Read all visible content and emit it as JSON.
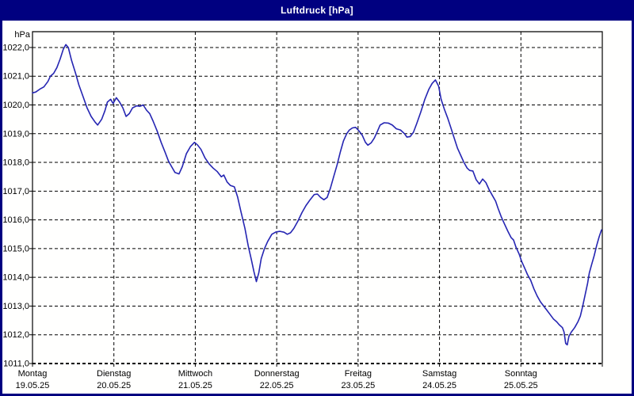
{
  "window": {
    "title": "Luftdruck [hPa]",
    "border_color": "#000080",
    "title_text_color": "#ffffff",
    "panel_background": "#fffffe"
  },
  "chart_data": {
    "type": "line",
    "title": "Luftdruck [hPa]",
    "unit_label": "hPa",
    "line_color": "#2525b2",
    "grid": "dashed",
    "grid_color": "#000000",
    "legend_position": "none",
    "y_axis": {
      "min": 1011.0,
      "max": 1022.55,
      "tick_step": 1.0,
      "ticks": [
        {
          "value": 1011,
          "label": "1011,0"
        },
        {
          "value": 1012,
          "label": "1012,0"
        },
        {
          "value": 1013,
          "label": "1013,0"
        },
        {
          "value": 1014,
          "label": "1014,0"
        },
        {
          "value": 1015,
          "label": "1015,0"
        },
        {
          "value": 1016,
          "label": "1016,0"
        },
        {
          "value": 1017,
          "label": "1017,0"
        },
        {
          "value": 1018,
          "label": "1018,0"
        },
        {
          "value": 1019,
          "label": "1019,0"
        },
        {
          "value": 1020,
          "label": "1020,0"
        },
        {
          "value": 1021,
          "label": "1021,0"
        },
        {
          "value": 1022,
          "label": "1022,0"
        }
      ]
    },
    "x_axis": {
      "num_days": 7,
      "days": [
        {
          "name": "Montag",
          "date": "19.05.25"
        },
        {
          "name": "Dienstag",
          "date": "20.05.25"
        },
        {
          "name": "Mittwoch",
          "date": "21.05.25"
        },
        {
          "name": "Donnerstag",
          "date": "22.05.25"
        },
        {
          "name": "Freitag",
          "date": "23.05.25"
        },
        {
          "name": "Samstag",
          "date": "24.05.25"
        },
        {
          "name": "Sonntag",
          "date": "25.05.25"
        }
      ]
    },
    "series": [
      {
        "name": "Luftdruck",
        "unit": "hPa",
        "points": [
          [
            0,
            1020.42
          ],
          [
            0.04,
            1020.45
          ],
          [
            0.09,
            1020.55
          ],
          [
            0.14,
            1020.63
          ],
          [
            0.19,
            1020.82
          ],
          [
            0.22,
            1021
          ],
          [
            0.26,
            1021.1
          ],
          [
            0.3,
            1021.3
          ],
          [
            0.34,
            1021.6
          ],
          [
            0.38,
            1021.95
          ],
          [
            0.41,
            1022.1
          ],
          [
            0.44,
            1022
          ],
          [
            0.48,
            1021.55
          ],
          [
            0.53,
            1021.1
          ],
          [
            0.57,
            1020.7
          ],
          [
            0.62,
            1020.3
          ],
          [
            0.67,
            1019.9
          ],
          [
            0.72,
            1019.6
          ],
          [
            0.77,
            1019.4
          ],
          [
            0.8,
            1019.3
          ],
          [
            0.85,
            1019.5
          ],
          [
            0.89,
            1019.8
          ],
          [
            0.92,
            1020.1
          ],
          [
            0.96,
            1020.2
          ],
          [
            0.99,
            1020.05
          ],
          [
            1.03,
            1020.25
          ],
          [
            1.07,
            1020.1
          ],
          [
            1.11,
            1019.9
          ],
          [
            1.15,
            1019.6
          ],
          [
            1.19,
            1019.7
          ],
          [
            1.23,
            1019.9
          ],
          [
            1.28,
            1019.97
          ],
          [
            1.32,
            1019.95
          ],
          [
            1.36,
            1020
          ],
          [
            1.4,
            1019.82
          ],
          [
            1.44,
            1019.7
          ],
          [
            1.48,
            1019.45
          ],
          [
            1.53,
            1019.1
          ],
          [
            1.58,
            1018.7
          ],
          [
            1.63,
            1018.35
          ],
          [
            1.67,
            1018.05
          ],
          [
            1.71,
            1017.85
          ],
          [
            1.75,
            1017.65
          ],
          [
            1.8,
            1017.6
          ],
          [
            1.84,
            1017.85
          ],
          [
            1.89,
            1018.3
          ],
          [
            1.94,
            1018.55
          ],
          [
            1.99,
            1018.7
          ],
          [
            2.03,
            1018.6
          ],
          [
            2.07,
            1018.45
          ],
          [
            2.12,
            1018.15
          ],
          [
            2.17,
            1017.95
          ],
          [
            2.22,
            1017.8
          ],
          [
            2.27,
            1017.68
          ],
          [
            2.32,
            1017.5
          ],
          [
            2.35,
            1017.56
          ],
          [
            2.39,
            1017.32
          ],
          [
            2.43,
            1017.2
          ],
          [
            2.48,
            1017.15
          ],
          [
            2.52,
            1016.8
          ],
          [
            2.56,
            1016.3
          ],
          [
            2.61,
            1015.7
          ],
          [
            2.65,
            1015.1
          ],
          [
            2.69,
            1014.6
          ],
          [
            2.72,
            1014.2
          ],
          [
            2.75,
            1013.85
          ],
          [
            2.78,
            1014.15
          ],
          [
            2.81,
            1014.65
          ],
          [
            2.85,
            1015
          ],
          [
            2.89,
            1015.25
          ],
          [
            2.94,
            1015.5
          ],
          [
            2.99,
            1015.58
          ],
          [
            3.04,
            1015.6
          ],
          [
            3.09,
            1015.57
          ],
          [
            3.13,
            1015.5
          ],
          [
            3.17,
            1015.55
          ],
          [
            3.21,
            1015.7
          ],
          [
            3.26,
            1015.95
          ],
          [
            3.31,
            1016.25
          ],
          [
            3.36,
            1016.5
          ],
          [
            3.41,
            1016.7
          ],
          [
            3.46,
            1016.88
          ],
          [
            3.5,
            1016.9
          ],
          [
            3.54,
            1016.78
          ],
          [
            3.58,
            1016.7
          ],
          [
            3.62,
            1016.78
          ],
          [
            3.66,
            1017.1
          ],
          [
            3.7,
            1017.5
          ],
          [
            3.74,
            1017.9
          ],
          [
            3.78,
            1018.35
          ],
          [
            3.82,
            1018.75
          ],
          [
            3.86,
            1019
          ],
          [
            3.89,
            1019.12
          ],
          [
            3.93,
            1019.2
          ],
          [
            3.97,
            1019.22
          ],
          [
            4.01,
            1019.1
          ],
          [
            4.05,
            1018.95
          ],
          [
            4.09,
            1018.7
          ],
          [
            4.12,
            1018.6
          ],
          [
            4.16,
            1018.68
          ],
          [
            4.2,
            1018.85
          ],
          [
            4.24,
            1019.1
          ],
          [
            4.27,
            1019.3
          ],
          [
            4.32,
            1019.38
          ],
          [
            4.37,
            1019.37
          ],
          [
            4.42,
            1019.3
          ],
          [
            4.47,
            1019.17
          ],
          [
            4.52,
            1019.13
          ],
          [
            4.57,
            1019
          ],
          [
            4.6,
            1018.88
          ],
          [
            4.64,
            1018.9
          ],
          [
            4.68,
            1019.05
          ],
          [
            4.72,
            1019.35
          ],
          [
            4.77,
            1019.75
          ],
          [
            4.82,
            1020.2
          ],
          [
            4.87,
            1020.55
          ],
          [
            4.91,
            1020.75
          ],
          [
            4.95,
            1020.87
          ],
          [
            4.99,
            1020.65
          ],
          [
            5.02,
            1020.2
          ],
          [
            5.06,
            1019.85
          ],
          [
            5.1,
            1019.55
          ],
          [
            5.14,
            1019.2
          ],
          [
            5.18,
            1018.85
          ],
          [
            5.22,
            1018.5
          ],
          [
            5.26,
            1018.25
          ],
          [
            5.3,
            1018
          ],
          [
            5.34,
            1017.8
          ],
          [
            5.37,
            1017.72
          ],
          [
            5.41,
            1017.7
          ],
          [
            5.45,
            1017.4
          ],
          [
            5.49,
            1017.25
          ],
          [
            5.53,
            1017.42
          ],
          [
            5.57,
            1017.3
          ],
          [
            5.61,
            1017.05
          ],
          [
            5.65,
            1016.85
          ],
          [
            5.69,
            1016.65
          ],
          [
            5.72,
            1016.4
          ],
          [
            5.76,
            1016.1
          ],
          [
            5.8,
            1015.85
          ],
          [
            5.84,
            1015.6
          ],
          [
            5.88,
            1015.38
          ],
          [
            5.91,
            1015.3
          ],
          [
            5.94,
            1015.05
          ],
          [
            5.98,
            1014.8
          ],
          [
            6.01,
            1014.55
          ],
          [
            6.05,
            1014.3
          ],
          [
            6.08,
            1014.1
          ],
          [
            6.12,
            1013.9
          ],
          [
            6.16,
            1013.6
          ],
          [
            6.2,
            1013.35
          ],
          [
            6.24,
            1013.15
          ],
          [
            6.28,
            1013
          ],
          [
            6.32,
            1012.85
          ],
          [
            6.36,
            1012.7
          ],
          [
            6.4,
            1012.55
          ],
          [
            6.44,
            1012.45
          ],
          [
            6.47,
            1012.35
          ],
          [
            6.51,
            1012.25
          ],
          [
            6.53,
            1012.1
          ],
          [
            6.55,
            1011.7
          ],
          [
            6.57,
            1011.65
          ],
          [
            6.59,
            1011.95
          ],
          [
            6.62,
            1012.1
          ],
          [
            6.66,
            1012.25
          ],
          [
            6.7,
            1012.45
          ],
          [
            6.73,
            1012.65
          ],
          [
            6.76,
            1013
          ],
          [
            6.79,
            1013.4
          ],
          [
            6.82,
            1013.8
          ],
          [
            6.84,
            1014.15
          ],
          [
            6.87,
            1014.45
          ],
          [
            6.9,
            1014.75
          ],
          [
            6.93,
            1015.1
          ],
          [
            6.96,
            1015.4
          ],
          [
            6.99,
            1015.65
          ]
        ]
      }
    ]
  }
}
